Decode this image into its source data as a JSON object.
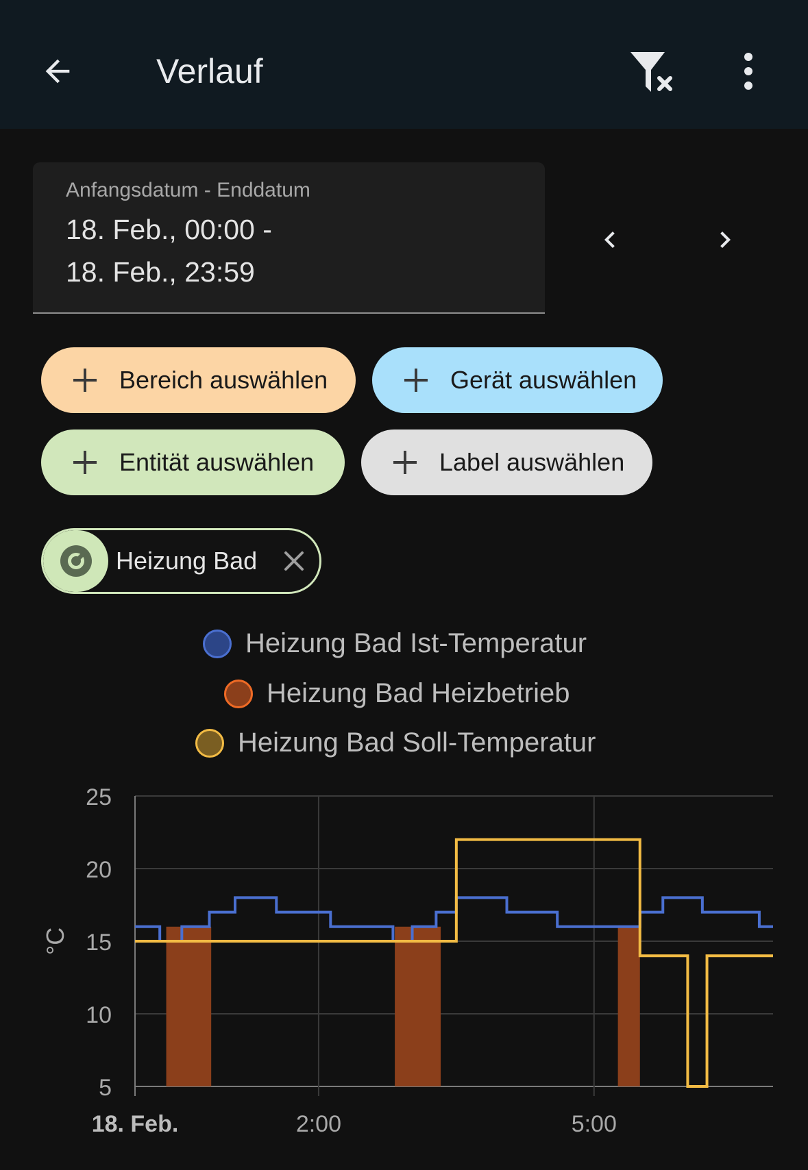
{
  "app": {
    "title": "Verlauf",
    "icons": {
      "back": "arrow-left-icon",
      "filter_clear": "filter-remove-icon",
      "menu": "dots-vertical-icon"
    }
  },
  "date_range": {
    "label": "Anfangsdatum - Enddatum",
    "line1": "18. Feb., 00:00 -",
    "line2": "18. Feb., 23:59",
    "prev_icon": "chevron-left-icon",
    "next_icon": "chevron-right-icon"
  },
  "target_picker": {
    "area": {
      "label": "Bereich auswählen",
      "color": "#fcd5a5"
    },
    "device": {
      "label": "Gerät auswählen",
      "color": "#a9e0fb"
    },
    "entity": {
      "label": "Entität auswählen",
      "color": "#d1e7bb"
    },
    "label": {
      "label": "Label auswählen",
      "color": "#e0e0e0"
    }
  },
  "selected_entity": {
    "label": "Heizung Bad",
    "icon": "thermostat-icon"
  },
  "legend": [
    {
      "name": "Heizung Bad Ist-Temperatur",
      "color": "#4a6fd0"
    },
    {
      "name": "Heizung Bad Heizbetrieb",
      "color": "#ee6a25"
    },
    {
      "name": "Heizung Bad Soll-Temperatur",
      "color": "#f2bb44"
    }
  ],
  "chart_data": {
    "type": "line",
    "ylabel": "°C",
    "ylim": [
      5,
      25
    ],
    "yticks": [
      "25",
      "20",
      "15",
      "10",
      "5"
    ],
    "xlim": [
      0,
      6.95
    ],
    "xticks": [
      {
        "x": 0,
        "label": "18. Feb.",
        "bold": true
      },
      {
        "x": 2,
        "label": "2:00",
        "bold": false
      },
      {
        "x": 5,
        "label": "5:00",
        "bold": false
      }
    ],
    "grid": true,
    "series": [
      {
        "name": "Heizung Bad Ist-Temperatur",
        "color": "#4a6fd0",
        "style": "step",
        "points": [
          [
            0,
            16
          ],
          [
            0.27,
            15
          ],
          [
            0.51,
            16
          ],
          [
            0.81,
            17
          ],
          [
            1.09,
            18
          ],
          [
            1.54,
            17
          ],
          [
            2.13,
            16
          ],
          [
            2.81,
            15
          ],
          [
            3.02,
            16
          ],
          [
            3.28,
            17
          ],
          [
            3.5,
            18
          ],
          [
            4.05,
            17
          ],
          [
            4.6,
            16
          ],
          [
            5.5,
            17
          ],
          [
            5.75,
            18
          ],
          [
            6.18,
            17
          ],
          [
            6.8,
            16
          ],
          [
            6.95,
            16
          ]
        ]
      },
      {
        "name": "Heizung Bad Heizbetrieb",
        "color": "#8b3f1b",
        "style": "bands",
        "value": 16,
        "bands": [
          [
            0.34,
            0.83
          ],
          [
            2.83,
            3.33
          ],
          [
            5.26,
            5.5
          ]
        ]
      },
      {
        "name": "Heizung Bad Soll-Temperatur",
        "color": "#f2bb44",
        "style": "step",
        "points": [
          [
            0,
            15
          ],
          [
            3.5,
            22
          ],
          [
            5.5,
            14
          ],
          [
            6.02,
            5
          ],
          [
            6.23,
            14
          ],
          [
            6.95,
            14
          ]
        ]
      }
    ]
  }
}
